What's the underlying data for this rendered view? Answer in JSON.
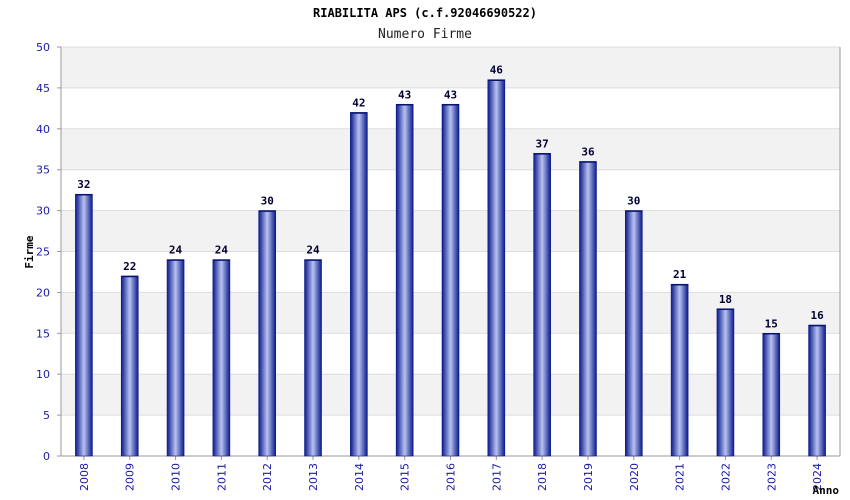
{
  "chart_data": {
    "type": "bar",
    "title": "RIABILITA APS (c.f.92046690522)",
    "subtitle": "Numero Firme",
    "xlabel": "Anno",
    "ylabel": "Firme",
    "ylim": [
      0,
      50
    ],
    "yticks": [
      0,
      5,
      10,
      15,
      20,
      25,
      30,
      35,
      40,
      45,
      50
    ],
    "grid": true,
    "categories": [
      "2008",
      "2009",
      "2010",
      "2011",
      "2012",
      "2013",
      "2014",
      "2015",
      "2016",
      "2017",
      "2018",
      "2019",
      "2020",
      "2021",
      "2022",
      "2023",
      "2024"
    ],
    "values": [
      32,
      22,
      24,
      24,
      30,
      24,
      42,
      43,
      43,
      46,
      37,
      36,
      30,
      21,
      18,
      15,
      16
    ],
    "colors": {
      "bar_dark": "#0b1a8c",
      "bar_light": "#b8c2f0",
      "band_alt": "#f2f2f2",
      "grid": "#dddddd",
      "axis": "#999999",
      "tick_text": "#1a1aa6"
    }
  }
}
